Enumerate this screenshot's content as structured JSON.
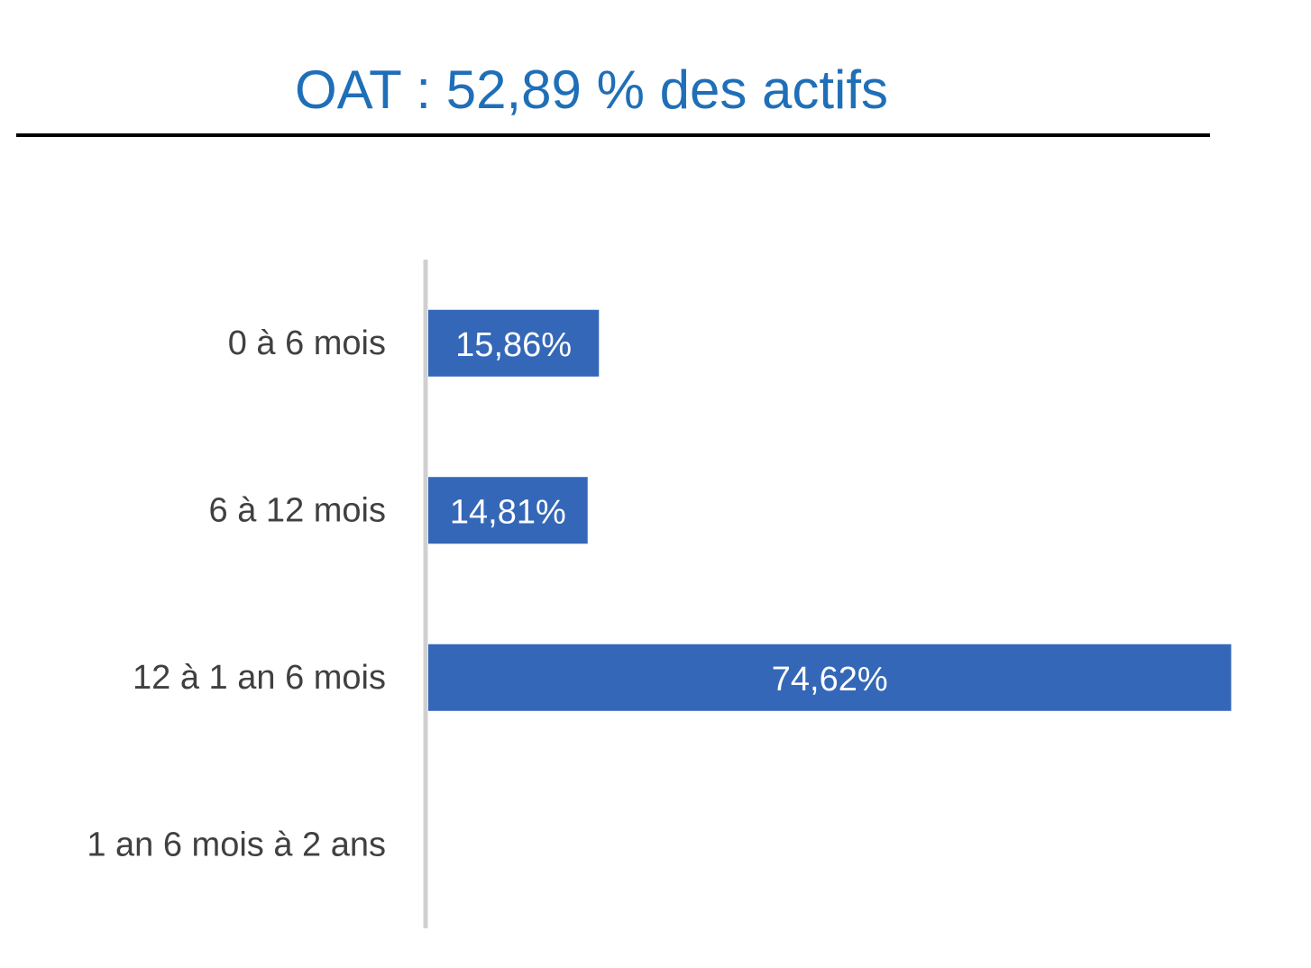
{
  "chart_data": {
    "type": "bar",
    "orientation": "horizontal",
    "title": "OAT : 52,89 % des actifs",
    "categories": [
      "0 à 6 mois",
      "6 à 12 mois",
      "12 à 1 an 6 mois",
      "1 an 6 mois à 2 ans"
    ],
    "values": [
      15.86,
      14.81,
      74.62,
      0
    ],
    "value_labels": [
      "15,86%",
      "14,81%",
      "74,62%",
      ""
    ],
    "xlim": [
      0,
      75
    ],
    "grid": false,
    "legend": "none",
    "bar_color": "#3467B7",
    "title_color": "#1F6FB8"
  }
}
